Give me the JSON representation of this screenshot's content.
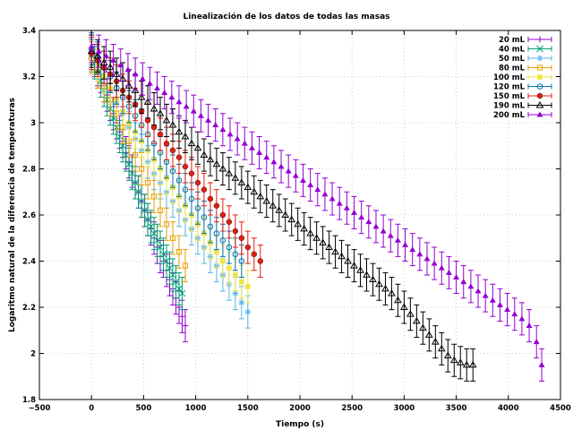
{
  "chart_data": {
    "type": "scatter",
    "title": "Linealización de los datos de todas las masas",
    "xlabel": "Tiempo (s)",
    "ylabel": "Logaritmo natural de la diferencia de temperaturas",
    "xlim": [
      -500,
      4500
    ],
    "ylim": [
      1.8,
      3.4
    ],
    "xticks": [
      -500,
      0,
      500,
      1000,
      1500,
      2000,
      2500,
      3000,
      3500,
      4000,
      4500
    ],
    "yticks": [
      1.8,
      2,
      2.2,
      2.4,
      2.6,
      2.8,
      3,
      3.2,
      3.4
    ],
    "xtick_labels": [
      "−500",
      "0",
      "500",
      "1000",
      "1500",
      "2000",
      "2500",
      "3000",
      "3500",
      "4000",
      "4500"
    ],
    "ytick_labels": [
      "1.8",
      "2",
      "2.2",
      "2.4",
      "2.6",
      "2.8",
      "3",
      "3.2",
      "3.4"
    ],
    "grid": true,
    "legend_position": "top-right",
    "error_bar": 0.07,
    "series": [
      {
        "name": "20 mL",
        "color": "#9400d3",
        "marker": "plus",
        "x": [
          0,
          30,
          60,
          90,
          120,
          150,
          180,
          210,
          240,
          270,
          300,
          330,
          360,
          390,
          420,
          450,
          480,
          510,
          540,
          570,
          600,
          630,
          660,
          690,
          720,
          750,
          780,
          810,
          840,
          870,
          900
        ],
        "y": [
          3.3,
          3.27,
          3.23,
          3.2,
          3.16,
          3.12,
          3.08,
          3.04,
          3.0,
          2.96,
          2.92,
          2.87,
          2.83,
          2.79,
          2.74,
          2.7,
          2.66,
          2.62,
          2.58,
          2.54,
          2.5,
          2.46,
          2.42,
          2.4,
          2.36,
          2.32,
          2.28,
          2.24,
          2.2,
          2.16,
          2.12
        ]
      },
      {
        "name": "40 mL",
        "color": "#009e73",
        "marker": "x",
        "x": [
          0,
          30,
          60,
          90,
          120,
          150,
          180,
          210,
          240,
          270,
          300,
          330,
          360,
          390,
          420,
          450,
          480,
          510,
          540,
          570,
          600,
          630,
          660,
          690,
          720,
          750,
          780,
          810,
          840,
          870
        ],
        "y": [
          3.29,
          3.26,
          3.22,
          3.18,
          3.14,
          3.1,
          3.06,
          3.02,
          2.98,
          2.94,
          2.9,
          2.86,
          2.82,
          2.78,
          2.74,
          2.7,
          2.66,
          2.62,
          2.58,
          2.55,
          2.52,
          2.49,
          2.46,
          2.43,
          2.4,
          2.37,
          2.34,
          2.31,
          2.28,
          2.26
        ]
      },
      {
        "name": "50 mL",
        "color": "#56b4e9",
        "marker": "star",
        "x": [
          0,
          60,
          120,
          180,
          240,
          300,
          360,
          420,
          480,
          540,
          600,
          660,
          720,
          780,
          840,
          900,
          960,
          1020,
          1080,
          1140,
          1200,
          1260,
          1320,
          1380,
          1440,
          1500
        ],
        "y": [
          3.3,
          3.25,
          3.2,
          3.14,
          3.09,
          3.04,
          2.98,
          2.93,
          2.88,
          2.83,
          2.78,
          2.74,
          2.7,
          2.66,
          2.62,
          2.58,
          2.54,
          2.5,
          2.46,
          2.42,
          2.38,
          2.34,
          2.3,
          2.26,
          2.22,
          2.18
        ]
      },
      {
        "name": "80 mL",
        "color": "#e69f00",
        "marker": "square",
        "x": [
          0,
          60,
          120,
          180,
          240,
          300,
          360,
          420,
          480,
          540,
          600,
          660,
          720,
          780,
          840,
          900
        ],
        "y": [
          3.28,
          3.22,
          3.16,
          3.1,
          3.04,
          2.98,
          2.92,
          2.86,
          2.8,
          2.74,
          2.68,
          2.62,
          2.56,
          2.5,
          2.44,
          2.38
        ]
      },
      {
        "name": "100 mL",
        "color": "#f0e442",
        "marker": "filled-square",
        "x": [
          0,
          60,
          120,
          180,
          240,
          300,
          360,
          420,
          480,
          540,
          600,
          660,
          720,
          780,
          840,
          900,
          960,
          1020,
          1080,
          1140,
          1200,
          1260,
          1320,
          1380,
          1440,
          1500
        ],
        "y": [
          3.3,
          3.25,
          3.2,
          3.15,
          3.1,
          3.05,
          3.0,
          2.96,
          2.92,
          2.88,
          2.84,
          2.8,
          2.76,
          2.72,
          2.68,
          2.64,
          2.6,
          2.56,
          2.52,
          2.48,
          2.44,
          2.4,
          2.37,
          2.34,
          2.31,
          2.29
        ]
      },
      {
        "name": "120 mL",
        "color": "#0072b2",
        "marker": "circle",
        "x": [
          0,
          60,
          120,
          180,
          240,
          300,
          360,
          420,
          480,
          540,
          600,
          660,
          720,
          780,
          840,
          900,
          960,
          1020,
          1080,
          1140,
          1200,
          1260,
          1320,
          1380,
          1440
        ],
        "y": [
          3.32,
          3.28,
          3.24,
          3.2,
          3.15,
          3.11,
          3.07,
          3.03,
          2.99,
          2.95,
          2.91,
          2.87,
          2.83,
          2.79,
          2.75,
          2.71,
          2.67,
          2.63,
          2.59,
          2.55,
          2.52,
          2.49,
          2.46,
          2.43,
          2.4
        ]
      },
      {
        "name": "150 mL",
        "color": "#e51e10",
        "marker": "filled-circle",
        "x": [
          0,
          60,
          120,
          180,
          240,
          300,
          360,
          420,
          480,
          540,
          600,
          660,
          720,
          780,
          840,
          900,
          960,
          1020,
          1080,
          1140,
          1200,
          1260,
          1320,
          1380,
          1440,
          1500,
          1560,
          1620
        ],
        "y": [
          3.3,
          3.27,
          3.24,
          3.21,
          3.18,
          3.14,
          3.11,
          3.08,
          3.05,
          3.01,
          2.98,
          2.95,
          2.91,
          2.88,
          2.85,
          2.81,
          2.78,
          2.74,
          2.71,
          2.67,
          2.64,
          2.6,
          2.57,
          2.53,
          2.5,
          2.46,
          2.43,
          2.4
        ]
      },
      {
        "name": "190 mL",
        "color": "#000000",
        "marker": "triangle",
        "x": [
          0,
          60,
          120,
          180,
          240,
          300,
          360,
          420,
          480,
          540,
          600,
          660,
          720,
          780,
          840,
          900,
          960,
          1020,
          1080,
          1140,
          1200,
          1260,
          1320,
          1380,
          1440,
          1500,
          1560,
          1620,
          1680,
          1740,
          1800,
          1860,
          1920,
          1980,
          2040,
          2100,
          2160,
          2220,
          2280,
          2340,
          2400,
          2460,
          2520,
          2580,
          2640,
          2700,
          2760,
          2820,
          2880,
          2940,
          3000,
          3060,
          3120,
          3180,
          3240,
          3300,
          3360,
          3420,
          3480,
          3540,
          3600,
          3660
        ],
        "y": [
          3.31,
          3.29,
          3.26,
          3.24,
          3.21,
          3.19,
          3.16,
          3.14,
          3.11,
          3.09,
          3.06,
          3.04,
          3.01,
          2.99,
          2.96,
          2.94,
          2.91,
          2.89,
          2.86,
          2.84,
          2.82,
          2.8,
          2.78,
          2.76,
          2.74,
          2.72,
          2.7,
          2.68,
          2.66,
          2.64,
          2.62,
          2.6,
          2.58,
          2.56,
          2.54,
          2.52,
          2.5,
          2.48,
          2.46,
          2.44,
          2.42,
          2.4,
          2.38,
          2.36,
          2.34,
          2.32,
          2.3,
          2.28,
          2.26,
          2.23,
          2.2,
          2.17,
          2.14,
          2.11,
          2.08,
          2.05,
          2.02,
          1.99,
          1.97,
          1.96,
          1.95,
          1.95
        ]
      },
      {
        "name": "200 mL",
        "color": "#9400d3",
        "marker": "filled-triangle",
        "x": [
          0,
          70,
          140,
          210,
          280,
          350,
          420,
          490,
          560,
          630,
          700,
          770,
          840,
          910,
          980,
          1050,
          1120,
          1190,
          1260,
          1330,
          1400,
          1470,
          1540,
          1610,
          1680,
          1750,
          1820,
          1890,
          1960,
          2030,
          2100,
          2170,
          2240,
          2310,
          2380,
          2450,
          2520,
          2590,
          2660,
          2730,
          2800,
          2870,
          2940,
          3010,
          3080,
          3150,
          3220,
          3290,
          3360,
          3430,
          3500,
          3570,
          3640,
          3710,
          3780,
          3850,
          3920,
          3990,
          4060,
          4130,
          4200,
          4270,
          4320
        ],
        "y": [
          3.33,
          3.31,
          3.29,
          3.27,
          3.25,
          3.23,
          3.21,
          3.19,
          3.17,
          3.15,
          3.13,
          3.11,
          3.09,
          3.07,
          3.05,
          3.03,
          3.01,
          2.99,
          2.97,
          2.95,
          2.93,
          2.91,
          2.89,
          2.87,
          2.85,
          2.83,
          2.81,
          2.79,
          2.77,
          2.75,
          2.73,
          2.71,
          2.69,
          2.67,
          2.65,
          2.63,
          2.61,
          2.59,
          2.57,
          2.55,
          2.53,
          2.51,
          2.49,
          2.47,
          2.45,
          2.43,
          2.41,
          2.39,
          2.37,
          2.35,
          2.33,
          2.31,
          2.29,
          2.27,
          2.25,
          2.23,
          2.21,
          2.19,
          2.17,
          2.15,
          2.12,
          2.05,
          1.95
        ]
      }
    ]
  }
}
